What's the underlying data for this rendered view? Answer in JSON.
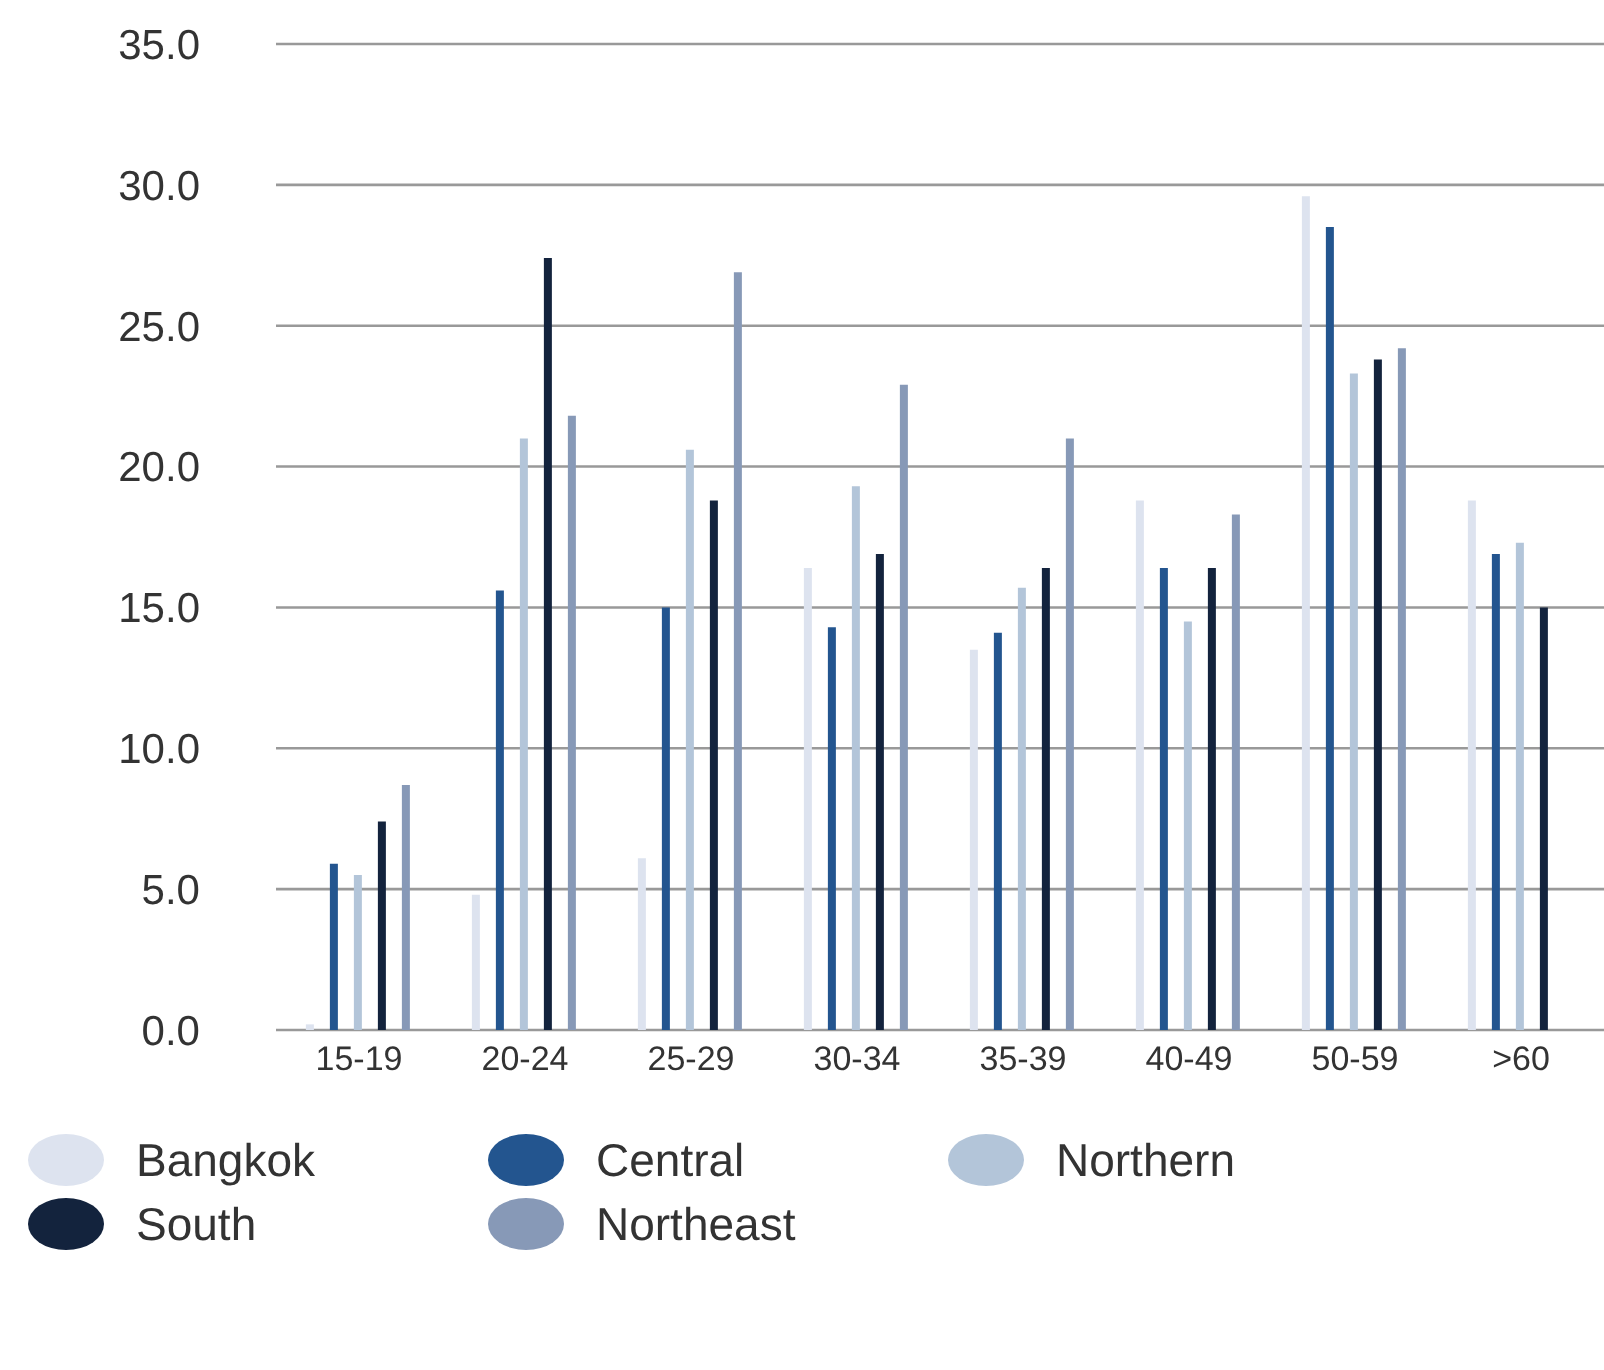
{
  "chart_data": {
    "type": "bar",
    "categories": [
      "15-19",
      "20-24",
      "25-29",
      "30-34",
      "35-39",
      "40-49",
      "50-59",
      ">60"
    ],
    "series": [
      {
        "name": "Bangkok",
        "color": "#dde3ef",
        "values": [
          0.2,
          4.8,
          6.1,
          16.4,
          13.5,
          18.8,
          29.6,
          18.8
        ]
      },
      {
        "name": "Central",
        "color": "#23558f",
        "values": [
          5.9,
          15.6,
          15.0,
          14.3,
          14.1,
          16.4,
          28.5,
          16.9
        ]
      },
      {
        "name": "Northern",
        "color": "#b3c5d9",
        "values": [
          5.5,
          21.0,
          20.6,
          19.3,
          15.7,
          14.5,
          23.3,
          17.3
        ]
      },
      {
        "name": "South",
        "color": "#13233d",
        "values": [
          7.4,
          27.4,
          18.8,
          16.9,
          16.4,
          16.4,
          23.8,
          15.0
        ]
      },
      {
        "name": "Northeast",
        "color": "#8799b7",
        "values": [
          8.7,
          21.8,
          26.9,
          22.9,
          21.0,
          18.3,
          24.2,
          null
        ]
      }
    ],
    "ylim": [
      0,
      35
    ],
    "yticks": [
      {
        "value": 0,
        "label": "0.0"
      },
      {
        "value": 5,
        "label": "5.0"
      },
      {
        "value": 10,
        "label": "10.0"
      },
      {
        "value": 15,
        "label": "15.0"
      },
      {
        "value": 20,
        "label": "20.0"
      },
      {
        "value": 25,
        "label": "25.0"
      },
      {
        "value": 30,
        "label": "30.0"
      },
      {
        "value": 35,
        "label": "35.0"
      }
    ],
    "grid": "y",
    "legend": "bottom"
  }
}
